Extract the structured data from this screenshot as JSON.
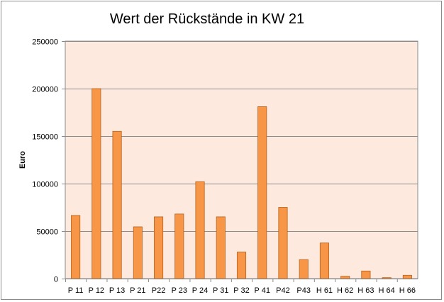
{
  "chart_data": {
    "type": "bar",
    "title": "Wert der Rückstände in KW 21",
    "xlabel": "",
    "ylabel": "Euro",
    "ylim": [
      0,
      250000
    ],
    "yticks": [
      0,
      50000,
      100000,
      150000,
      200000,
      250000
    ],
    "categories": [
      "P 11",
      "P 12",
      "P 13",
      "P 21",
      "P22",
      "P 23",
      "P 24",
      "P 31",
      "P 32",
      "P 41",
      "P42",
      "P43",
      "H 61",
      "H 62",
      "H 63",
      "H 64",
      "H 66"
    ],
    "values": [
      66500,
      200000,
      155000,
      54500,
      65000,
      68000,
      102000,
      65000,
      28000,
      181000,
      75000,
      20000,
      37500,
      2500,
      8000,
      1000,
      3500
    ],
    "grid": true,
    "legend": "none",
    "colors": {
      "bar": "#f79646",
      "bar_edge": "#b8611b",
      "plot_bg": "#fde9de",
      "grid": "#8c8c8c"
    }
  }
}
